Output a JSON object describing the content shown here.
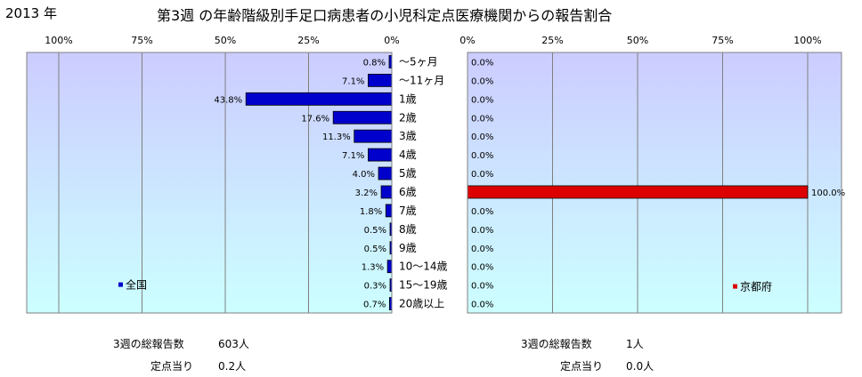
{
  "header": {
    "year": "2013 年",
    "title": "第3週 の年齢階級別手足口病患者の小児科定点医療機関からの報告割合"
  },
  "colors": {
    "national_bar": "#0000cc",
    "kyoto_bar": "#dd0000",
    "plot_top": "#ccccff",
    "plot_bottom": "#ccffff",
    "grid": "#808080"
  },
  "chart_data": {
    "type": "bar",
    "orientation": "horizontal",
    "categories": [
      "～5ヶ月",
      "～11ヶ月",
      "1歳",
      "2歳",
      "3歳",
      "4歳",
      "5歳",
      "6歳",
      "7歳",
      "8歳",
      "9歳",
      "10～14歳",
      "15～19歳",
      "20歳以上"
    ],
    "left_axis": {
      "ticks": [
        "100%",
        "75%",
        "50%",
        "25%",
        "0%"
      ],
      "xlim": [
        0,
        100
      ],
      "direction": "reversed"
    },
    "right_axis": {
      "ticks": [
        "0%",
        "25%",
        "50%",
        "75%",
        "100%"
      ],
      "xlim": [
        0,
        100
      ]
    },
    "series": [
      {
        "name": "全国",
        "side": "left",
        "values": [
          0.8,
          7.1,
          43.8,
          17.6,
          11.3,
          7.1,
          4.0,
          3.2,
          1.8,
          0.5,
          0.5,
          1.3,
          0.3,
          0.7
        ],
        "labels": [
          "0.8%",
          "7.1%",
          "43.8%",
          "17.6%",
          "11.3%",
          "7.1%",
          "4.0%",
          "3.2%",
          "1.8%",
          "0.5%",
          "0.5%",
          "1.3%",
          "0.3%",
          "0.7%"
        ]
      },
      {
        "name": "京都府",
        "side": "right",
        "values": [
          0,
          0,
          0,
          0,
          0,
          0,
          0,
          100,
          0,
          0,
          0,
          0,
          0,
          0
        ],
        "labels": [
          "0.0%",
          "0.0%",
          "0.0%",
          "0.0%",
          "0.0%",
          "0.0%",
          "0.0%",
          "100.0%",
          "0.0%",
          "0.0%",
          "0.0%",
          "0.0%",
          "0.0%",
          "0.0%"
        ]
      }
    ],
    "legend": {
      "left": "bottom-left",
      "right": "bottom-right"
    },
    "grid": true
  },
  "stats": {
    "national": {
      "total_label": "3週の総報告数",
      "total_value": "603人",
      "per_label": "定点当り",
      "per_value": "0.2人"
    },
    "kyoto": {
      "total_label": "3週の総報告数",
      "total_value": "1人",
      "per_label": "定点当り",
      "per_value": "0.0人"
    }
  }
}
